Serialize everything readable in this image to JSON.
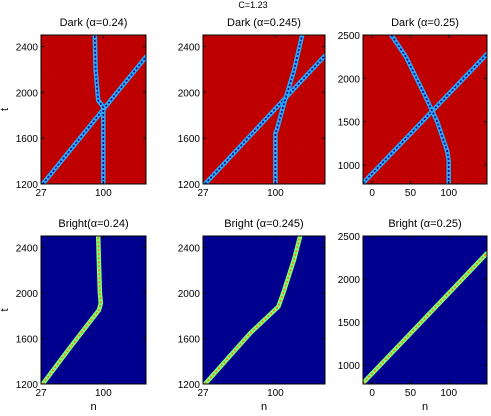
{
  "figure": {
    "suptitle": "C=1.23"
  },
  "colors": {
    "dark_background": "#d10000",
    "bright_background": "#00008f",
    "dark_trace_core": "#00007a",
    "dark_trace_halo": "#27a9ff",
    "bright_trace_core": "#ff7a00",
    "bright_trace_halo": "#7dff7a",
    "frame": "#000000"
  },
  "chart_data": [
    {
      "type": "heatmap",
      "title": "Dark (α=0.24)",
      "background": "dark",
      "xlabel": "",
      "ylabel": "t",
      "xlim": [
        27,
        150
      ],
      "ylim": [
        1200,
        2500
      ],
      "xticks": [
        {
          "v": 27,
          "label": "27"
        },
        {
          "v": 100,
          "label": "100"
        }
      ],
      "yticks": [
        {
          "v": 1200,
          "label": "1200"
        },
        {
          "v": 1600,
          "label": "1600"
        },
        {
          "v": 2000,
          "label": "2000"
        },
        {
          "v": 2400,
          "label": "2400"
        }
      ],
      "traces": [
        {
          "name": "moving soliton",
          "points": [
            [
              29,
              1200
            ],
            [
              150,
              2310
            ]
          ]
        },
        {
          "name": "stationary soliton",
          "points": [
            [
              100,
              1200
            ],
            [
              100,
              1870
            ],
            [
              94,
              1930
            ],
            [
              91,
              2200
            ],
            [
              90,
              2500
            ]
          ]
        }
      ]
    },
    {
      "type": "heatmap",
      "title": "Dark (α=0.245)",
      "background": "dark",
      "xlabel": "",
      "ylabel": "",
      "xlim": [
        27,
        150
      ],
      "ylim": [
        1200,
        2500
      ],
      "xticks": [
        {
          "v": 27,
          "label": "27"
        },
        {
          "v": 100,
          "label": "100"
        }
      ],
      "yticks": [
        {
          "v": 1200,
          "label": "1200"
        },
        {
          "v": 1600,
          "label": "1600"
        },
        {
          "v": 2000,
          "label": "2000"
        },
        {
          "v": 2400,
          "label": "2400"
        }
      ],
      "traces": [
        {
          "name": "moving soliton",
          "points": [
            [
              29,
              1200
            ],
            [
              150,
              2320
            ]
          ]
        },
        {
          "name": "stationary soliton",
          "points": [
            [
              100,
              1200
            ],
            [
              100,
              1640
            ],
            [
              102,
              1690
            ],
            [
              108,
              1880
            ],
            [
              119,
              2200
            ],
            [
              127,
              2500
            ]
          ]
        }
      ]
    },
    {
      "type": "heatmap",
      "title": "Dark (α=0.25)",
      "background": "dark",
      "xlabel": "",
      "ylabel": "",
      "xlim": [
        -12,
        150
      ],
      "ylim": [
        780,
        2500
      ],
      "xticks": [
        {
          "v": 0,
          "label": "0"
        },
        {
          "v": 50,
          "label": "50"
        },
        {
          "v": 100,
          "label": "100"
        }
      ],
      "yticks": [
        {
          "v": 1000,
          "label": "1000"
        },
        {
          "v": 1500,
          "label": "1500"
        },
        {
          "v": 2000,
          "label": "2000"
        },
        {
          "v": 2500,
          "label": "2500"
        }
      ],
      "traces": [
        {
          "name": "moving soliton",
          "points": [
            [
              -12,
              790
            ],
            [
              150,
              2280
            ]
          ]
        },
        {
          "name": "stationary soliton",
          "points": [
            [
              100,
              780
            ],
            [
              100,
              1050
            ],
            [
              98,
              1160
            ],
            [
              85,
              1500
            ],
            [
              69,
              1800
            ],
            [
              44,
              2250
            ],
            [
              25,
              2500
            ]
          ]
        }
      ]
    },
    {
      "type": "heatmap",
      "title": "Bright(α=0.24)",
      "background": "bright",
      "xlabel": "n",
      "ylabel": "t",
      "xlim": [
        27,
        150
      ],
      "ylim": [
        1200,
        2500
      ],
      "xticks": [
        {
          "v": 27,
          "label": "27"
        },
        {
          "v": 100,
          "label": "100"
        }
      ],
      "yticks": [
        {
          "v": 1200,
          "label": "1200"
        },
        {
          "v": 1600,
          "label": "1600"
        },
        {
          "v": 2000,
          "label": "2000"
        },
        {
          "v": 2400,
          "label": "2400"
        }
      ],
      "traces": [
        {
          "name": "bright soliton",
          "points": [
            [
              29,
              1200
            ],
            [
              62,
              1530
            ],
            [
              95,
              1850
            ],
            [
              97,
              1910
            ],
            [
              96,
              2000
            ],
            [
              95,
              2250
            ],
            [
              94,
              2500
            ]
          ]
        }
      ]
    },
    {
      "type": "heatmap",
      "title": "Bright (α=0.245)",
      "background": "bright",
      "xlabel": "n",
      "ylabel": "",
      "xlim": [
        27,
        150
      ],
      "ylim": [
        1200,
        2500
      ],
      "xticks": [
        {
          "v": 27,
          "label": "27"
        },
        {
          "v": 100,
          "label": "100"
        }
      ],
      "yticks": [
        {
          "v": 1200,
          "label": "1200"
        },
        {
          "v": 1600,
          "label": "1600"
        },
        {
          "v": 2000,
          "label": "2000"
        },
        {
          "v": 2400,
          "label": "2400"
        }
      ],
      "traces": [
        {
          "name": "bright soliton",
          "points": [
            [
              29,
              1200
            ],
            [
              75,
              1650
            ],
            [
              103,
              1880
            ],
            [
              108,
              2000
            ],
            [
              119,
              2300
            ],
            [
              125,
              2500
            ]
          ]
        }
      ]
    },
    {
      "type": "heatmap",
      "title": "Bright (α=0.25)",
      "background": "bright",
      "xlabel": "n",
      "ylabel": "",
      "xlim": [
        -12,
        150
      ],
      "ylim": [
        780,
        2500
      ],
      "xticks": [
        {
          "v": 0,
          "label": "0"
        },
        {
          "v": 50,
          "label": "50"
        },
        {
          "v": 100,
          "label": "100"
        }
      ],
      "yticks": [
        {
          "v": 1000,
          "label": "1000"
        },
        {
          "v": 1500,
          "label": "1500"
        },
        {
          "v": 2000,
          "label": "2000"
        },
        {
          "v": 2500,
          "label": "2500"
        }
      ],
      "traces": [
        {
          "name": "bright soliton",
          "points": [
            [
              -12,
              790
            ],
            [
              150,
              2300
            ]
          ]
        }
      ]
    }
  ]
}
